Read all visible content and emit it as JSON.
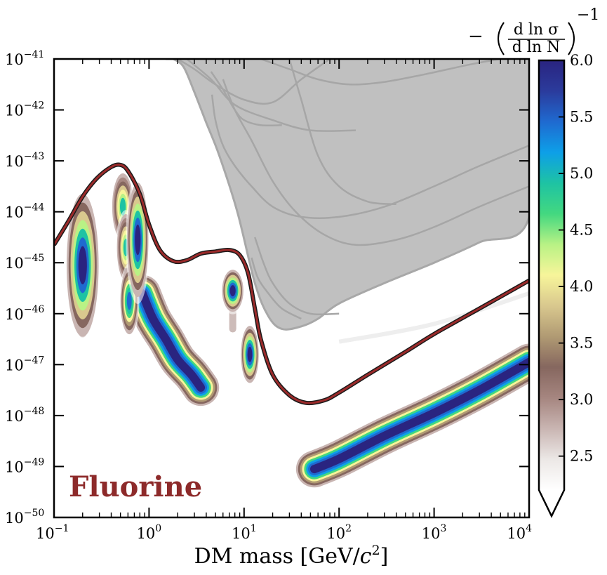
{
  "chart_data": {
    "type": "heatmap",
    "xlabel_main": "DM mass [GeV/",
    "xlabel_c": "c",
    "xlabel_exp": "2",
    "xlabel_close": "]",
    "x_scale": "log",
    "y_scale": "log",
    "xlim": [
      0.1,
      10000
    ],
    "ylim": [
      1e-50,
      1e-41
    ],
    "x_ticks": [
      {
        "value": 0.1,
        "base": "10",
        "exp": "−1"
      },
      {
        "value": 1,
        "base": "10",
        "exp": "0"
      },
      {
        "value": 10,
        "base": "10",
        "exp": "1"
      },
      {
        "value": 100,
        "base": "10",
        "exp": "2"
      },
      {
        "value": 1000,
        "base": "10",
        "exp": "3"
      },
      {
        "value": 10000,
        "base": "10",
        "exp": "4"
      }
    ],
    "y_ticks": [
      {
        "value": -41,
        "base": "10",
        "exp": "−41"
      },
      {
        "value": -42,
        "base": "10",
        "exp": "−42"
      },
      {
        "value": -43,
        "base": "10",
        "exp": "−43"
      },
      {
        "value": -44,
        "base": "10",
        "exp": "−44"
      },
      {
        "value": -45,
        "base": "10",
        "exp": "−45"
      },
      {
        "value": -46,
        "base": "10",
        "exp": "−46"
      },
      {
        "value": -47,
        "base": "10",
        "exp": "−47"
      },
      {
        "value": -48,
        "base": "10",
        "exp": "−48"
      },
      {
        "value": -49,
        "base": "10",
        "exp": "−49"
      },
      {
        "value": -50,
        "base": "10",
        "exp": "−50"
      }
    ],
    "annotation": "Fluorine",
    "colorbar": {
      "title_prefix": "−",
      "title_num": "d ln σ",
      "title_den": "d ln N",
      "title_exp": "−1",
      "min": 2.2,
      "max": 6.0,
      "extend": "min",
      "ticks": [
        "2.5",
        "3.0",
        "3.5",
        "4.0",
        "4.5",
        "5.0",
        "5.5",
        "6.0"
      ],
      "tick_values": [
        2.5,
        3.0,
        3.5,
        4.0,
        4.5,
        5.0,
        5.5,
        6.0
      ],
      "colormap": [
        "#ffffff",
        "#ece8e6",
        "#c9b5b2",
        "#a68680",
        "#86675f",
        "#b09a73",
        "#d9c88e",
        "#f7f59a",
        "#b9f285",
        "#43d880",
        "#1ec3a3",
        "#0d9fe8",
        "#1f6ad0",
        "#2b3b9c",
        "#2a2480"
      ]
    },
    "excluded_region_color": "#c0c0c0",
    "existing_limits_color": "#a6a6a6",
    "projection_line_color": "#9b2a2a",
    "projection_line": [
      [
        0.1,
        -44.65
      ],
      [
        0.14,
        -44.2
      ],
      [
        0.2,
        -43.7
      ],
      [
        0.28,
        -43.35
      ],
      [
        0.4,
        -43.12
      ],
      [
        0.5,
        -43.08
      ],
      [
        0.6,
        -43.2
      ],
      [
        0.8,
        -43.65
      ],
      [
        1.0,
        -44.25
      ],
      [
        1.3,
        -44.75
      ],
      [
        1.8,
        -44.97
      ],
      [
        2.5,
        -44.95
      ],
      [
        3.5,
        -44.82
      ],
      [
        5.0,
        -44.78
      ],
      [
        7.0,
        -44.75
      ],
      [
        9.0,
        -44.85
      ],
      [
        11,
        -45.2
      ],
      [
        13,
        -45.9
      ],
      [
        15,
        -46.5
      ],
      [
        20,
        -47.2
      ],
      [
        30,
        -47.6
      ],
      [
        45,
        -47.75
      ],
      [
        70,
        -47.7
      ],
      [
        100,
        -47.55
      ],
      [
        200,
        -47.2
      ],
      [
        500,
        -46.75
      ],
      [
        1000,
        -46.4
      ],
      [
        3000,
        -45.9
      ],
      [
        10000,
        -45.35
      ]
    ],
    "excluded_region": [
      [
        1.5,
        -41.0
      ],
      [
        10000,
        -41.0
      ],
      [
        10000,
        -44.1
      ],
      [
        3000,
        -44.6
      ],
      [
        1000,
        -45.0
      ],
      [
        300,
        -45.4
      ],
      [
        100,
        -45.8
      ],
      [
        60,
        -46.1
      ],
      [
        40,
        -46.25
      ],
      [
        25,
        -46.3
      ],
      [
        18,
        -46.05
      ],
      [
        13,
        -45.4
      ],
      [
        8.5,
        -44.0
      ],
      [
        5.5,
        -42.9
      ],
      [
        4.0,
        -42.25
      ],
      [
        3.0,
        -41.65
      ],
      [
        2.3,
        -41.15
      ],
      [
        1.8,
        -41.0
      ]
    ],
    "existing_limit_curves": [
      [
        [
          4.6,
          -41.7
        ],
        [
          5.0,
          -42.2
        ],
        [
          6.0,
          -42.7
        ],
        [
          8.0,
          -43.1
        ],
        [
          12,
          -43.5
        ],
        [
          20,
          -43.9
        ],
        [
          40,
          -44.1
        ],
        [
          100,
          -44.1
        ],
        [
          300,
          -43.9
        ],
        [
          1000,
          -43.5
        ],
        [
          3000,
          -43.1
        ],
        [
          10000,
          -42.7
        ]
      ],
      [
        [
          6.0,
          -41.4
        ],
        [
          8.0,
          -42.0
        ],
        [
          12,
          -42.6
        ],
        [
          20,
          -43.4
        ],
        [
          35,
          -44.0
        ],
        [
          70,
          -44.45
        ],
        [
          150,
          -44.65
        ],
        [
          400,
          -44.55
        ],
        [
          1000,
          -44.3
        ],
        [
          3000,
          -43.9
        ],
        [
          10000,
          -43.5
        ]
      ],
      [
        [
          2.0,
          -41.0
        ],
        [
          3.0,
          -41.2
        ],
        [
          5.0,
          -41.5
        ],
        [
          10,
          -41.8
        ],
        [
          20,
          -41.85
        ],
        [
          40,
          -41.4
        ],
        [
          80,
          -41.0
        ]
      ],
      [
        [
          4.5,
          -41.25
        ],
        [
          6.0,
          -41.6
        ],
        [
          8.0,
          -42.0
        ],
        [
          10,
          -42.2
        ],
        [
          15,
          -42.3
        ],
        [
          25,
          -42.3
        ]
      ],
      [
        [
          2.5,
          -41.0
        ],
        [
          4.5,
          -41.4
        ],
        [
          8.0,
          -41.9
        ],
        [
          20,
          -42.2
        ],
        [
          50,
          -42.4
        ],
        [
          150,
          -42.4
        ]
      ],
      [
        [
          15,
          -41.0
        ],
        [
          30,
          -41.2
        ],
        [
          60,
          -41.4
        ],
        [
          130,
          -41.5
        ],
        [
          300,
          -41.45
        ],
        [
          800,
          -41.3
        ],
        [
          2500,
          -41.1
        ],
        [
          5000,
          -41.0
        ]
      ],
      [
        [
          13,
          -44.5
        ],
        [
          16,
          -45.0
        ],
        [
          20,
          -45.4
        ],
        [
          30,
          -45.8
        ],
        [
          50,
          -46.0
        ],
        [
          100,
          -46.0
        ]
      ],
      [
        [
          12,
          -44.9
        ],
        [
          14,
          -45.3
        ],
        [
          18,
          -45.6
        ],
        [
          25,
          -45.9
        ],
        [
          40,
          -46.1
        ]
      ],
      [
        [
          30,
          -41.0
        ],
        [
          40,
          -41.8
        ],
        [
          60,
          -42.9
        ],
        [
          100,
          -43.5
        ],
        [
          200,
          -43.8
        ],
        [
          400,
          -43.85
        ]
      ]
    ],
    "faint_band": [
      [
        100,
        -46.55
      ],
      [
        1000,
        -46.2
      ],
      [
        10000,
        -45.6
      ]
    ],
    "white_island": [
      [
        0.72,
        -46.95
      ],
      [
        0.76,
        -47.2
      ],
      [
        0.76,
        -47.6
      ],
      [
        0.66,
        -47.95
      ],
      [
        0.55,
        -48.1
      ],
      [
        0.5,
        -48.7
      ],
      [
        0.42,
        -49.0
      ],
      [
        0.35,
        -49.12
      ],
      [
        0.28,
        -49.1
      ],
      [
        0.22,
        -49.0
      ],
      [
        0.17,
        -48.7
      ],
      [
        0.14,
        -48.35
      ],
      [
        0.15,
        -48.1
      ],
      [
        0.28,
        -48.05
      ],
      [
        0.45,
        -47.8
      ],
      [
        0.62,
        -47.2
      ]
    ],
    "hotspots": [
      {
        "cx": 0.2,
        "cy": -45.05,
        "rx": 0.09,
        "ry": 0.75,
        "peak": 6.0,
        "tail": -46.4
      },
      {
        "cx": 0.53,
        "cy": -43.9,
        "rx": 0.06,
        "ry": 0.35,
        "peak": 4.8
      },
      {
        "cx": 0.57,
        "cy": -44.7,
        "rx": 0.05,
        "ry": 0.35,
        "peak": 4.8
      },
      {
        "cx": 0.62,
        "cy": -45.75,
        "rx": 0.05,
        "ry": 0.35,
        "peak": 5.4
      },
      {
        "cx": 0.76,
        "cy": -44.55,
        "rx": 0.06,
        "ry": 0.6,
        "peak": 6.0
      },
      {
        "cx": 7.6,
        "cy": -45.55,
        "rx": 0.06,
        "ry": 0.22,
        "peak": 6.0,
        "tail": -46.3
      },
      {
        "cx": 11.5,
        "cy": -46.8,
        "rx": 0.05,
        "ry": 0.3,
        "peak": 6.0
      }
    ],
    "ridges": [
      {
        "points": [
          [
            0.85,
            -45.6
          ],
          [
            1.1,
            -46.1
          ],
          [
            1.5,
            -46.5
          ],
          [
            2.0,
            -46.9
          ],
          [
            2.8,
            -47.2
          ],
          [
            3.5,
            -47.45
          ]
        ],
        "peak": 6.0
      },
      {
        "points": [
          [
            55,
            -49.05
          ],
          [
            100,
            -48.85
          ],
          [
            300,
            -48.4
          ],
          [
            1000,
            -47.95
          ],
          [
            3000,
            -47.5
          ],
          [
            10000,
            -46.95
          ]
        ],
        "peak": 6.0
      }
    ]
  }
}
